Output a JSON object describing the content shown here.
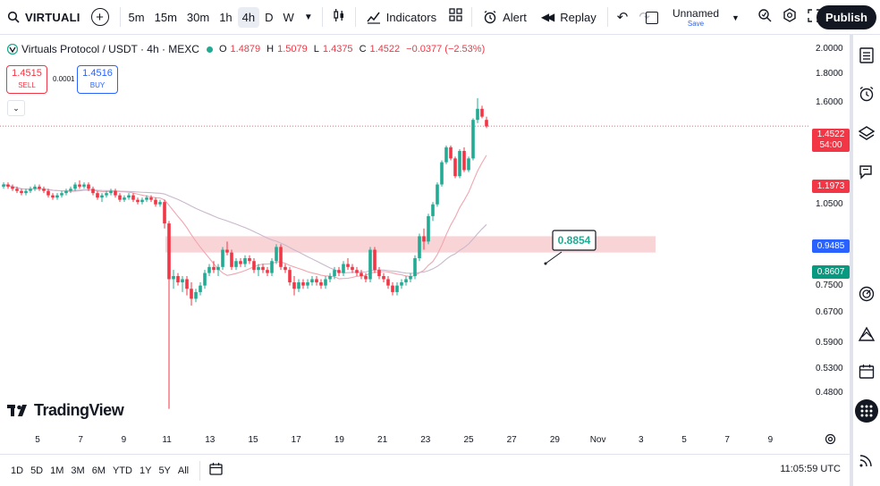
{
  "toolbar": {
    "symbol": "VIRTUALI",
    "add_symbol": "+",
    "timeframes": [
      "5m",
      "15m",
      "30m",
      "1h",
      "4h",
      "D",
      "W"
    ],
    "active_timeframe": "4h",
    "indicators_label": "Indicators",
    "alert_label": "Alert",
    "replay_label": "Replay",
    "layout_name": "Unnamed",
    "layout_save": "Save",
    "publish_label": "Publish"
  },
  "legend": {
    "title": "Virtuals Protocol / USDT · 4h · MEXC",
    "open_k": "O",
    "open_v": "1.4879",
    "high_k": "H",
    "high_v": "1.5079",
    "low_k": "L",
    "low_v": "1.4375",
    "close_k": "C",
    "close_v": "1.4522",
    "change": "−0.0377 (−2.53%)"
  },
  "trade": {
    "sell_price": "1.4515",
    "sell_label": "SELL",
    "buy_price": "1.4516",
    "buy_label": "BUY",
    "spread": "0.0001"
  },
  "price_axis": {
    "ticks": [
      "2.0000",
      "1.8000",
      "1.6000",
      "1.0500",
      "0.7500",
      "0.6700",
      "0.5900",
      "0.5300",
      "0.4800"
    ],
    "current_price": "1.4522",
    "countdown": "54:00",
    "label_red": "1.1973",
    "label_blue": "0.9485",
    "label_green": "0.8607"
  },
  "annotation": {
    "value": "0.8854"
  },
  "time_axis": {
    "ticks": [
      "5",
      "7",
      "9",
      "11",
      "13",
      "15",
      "17",
      "19",
      "21",
      "23",
      "25",
      "27",
      "29",
      "Nov",
      "3",
      "5",
      "7",
      "9"
    ]
  },
  "bottom": {
    "ranges": [
      "1D",
      "5D",
      "1M",
      "3M",
      "6M",
      "YTD",
      "1Y",
      "5Y",
      "All"
    ],
    "clock": "11:05:59 UTC"
  },
  "branding": {
    "logo_text": "TradingView"
  },
  "colors": {
    "up": "#22ab94",
    "down": "#f23645",
    "blue": "#2962ff",
    "green_label": "#089981",
    "zone": "#f8c9cd",
    "ma1": "#f0a6b0",
    "ma2": "#c9b8cc"
  },
  "chart_data": {
    "type": "candlestick",
    "symbol": "Virtuals Protocol / USDT",
    "interval": "4h",
    "exchange": "MEXC",
    "y_scale": "log",
    "support_zone": [
      0.86,
      0.92
    ],
    "candles": [
      [
        1.13,
        1.15,
        1.12,
        1.14
      ],
      [
        1.14,
        1.15,
        1.12,
        1.13
      ],
      [
        1.13,
        1.14,
        1.11,
        1.12
      ],
      [
        1.12,
        1.13,
        1.1,
        1.11
      ],
      [
        1.11,
        1.12,
        1.09,
        1.1
      ],
      [
        1.1,
        1.12,
        1.09,
        1.11
      ],
      [
        1.11,
        1.13,
        1.1,
        1.12
      ],
      [
        1.12,
        1.14,
        1.11,
        1.13
      ],
      [
        1.13,
        1.14,
        1.11,
        1.12
      ],
      [
        1.12,
        1.13,
        1.1,
        1.11
      ],
      [
        1.11,
        1.12,
        1.08,
        1.09
      ],
      [
        1.09,
        1.1,
        1.07,
        1.08
      ],
      [
        1.08,
        1.1,
        1.07,
        1.09
      ],
      [
        1.09,
        1.11,
        1.08,
        1.1
      ],
      [
        1.1,
        1.12,
        1.09,
        1.11
      ],
      [
        1.11,
        1.13,
        1.1,
        1.12
      ],
      [
        1.12,
        1.15,
        1.11,
        1.14
      ],
      [
        1.14,
        1.16,
        1.12,
        1.13
      ],
      [
        1.13,
        1.15,
        1.12,
        1.14
      ],
      [
        1.14,
        1.15,
        1.11,
        1.12
      ],
      [
        1.12,
        1.13,
        1.09,
        1.1
      ],
      [
        1.1,
        1.11,
        1.07,
        1.08
      ],
      [
        1.08,
        1.1,
        1.06,
        1.09
      ],
      [
        1.09,
        1.11,
        1.08,
        1.1
      ],
      [
        1.1,
        1.12,
        1.09,
        1.11
      ],
      [
        1.11,
        1.12,
        1.08,
        1.09
      ],
      [
        1.09,
        1.1,
        1.06,
        1.07
      ],
      [
        1.07,
        1.09,
        1.06,
        1.08
      ],
      [
        1.08,
        1.1,
        1.07,
        1.09
      ],
      [
        1.09,
        1.1,
        1.06,
        1.07
      ],
      [
        1.07,
        1.08,
        1.05,
        1.06
      ],
      [
        1.06,
        1.08,
        1.05,
        1.07
      ],
      [
        1.07,
        1.09,
        1.06,
        1.08
      ],
      [
        1.08,
        1.09,
        1.06,
        1.07
      ],
      [
        1.07,
        1.08,
        1.04,
        1.05
      ],
      [
        1.05,
        1.07,
        1.04,
        1.06
      ],
      [
        1.06,
        1.07,
        0.95,
        0.97
      ],
      [
        0.97,
        0.98,
        0.45,
        0.77
      ],
      [
        0.77,
        0.8,
        0.74,
        0.78
      ],
      [
        0.78,
        0.79,
        0.75,
        0.76
      ],
      [
        0.76,
        0.78,
        0.73,
        0.77
      ],
      [
        0.77,
        0.78,
        0.72,
        0.74
      ],
      [
        0.74,
        0.76,
        0.69,
        0.71
      ],
      [
        0.71,
        0.74,
        0.7,
        0.73
      ],
      [
        0.73,
        0.76,
        0.72,
        0.75
      ],
      [
        0.75,
        0.8,
        0.74,
        0.79
      ],
      [
        0.79,
        0.82,
        0.78,
        0.81
      ],
      [
        0.81,
        0.83,
        0.79,
        0.8
      ],
      [
        0.8,
        0.82,
        0.78,
        0.81
      ],
      [
        0.81,
        0.88,
        0.8,
        0.87
      ],
      [
        0.87,
        0.9,
        0.85,
        0.86
      ],
      [
        0.86,
        0.87,
        0.8,
        0.81
      ],
      [
        0.81,
        0.84,
        0.8,
        0.83
      ],
      [
        0.83,
        0.84,
        0.81,
        0.82
      ],
      [
        0.82,
        0.85,
        0.81,
        0.84
      ],
      [
        0.84,
        0.85,
        0.82,
        0.83
      ],
      [
        0.83,
        0.84,
        0.79,
        0.8
      ],
      [
        0.8,
        0.82,
        0.78,
        0.81
      ],
      [
        0.81,
        0.82,
        0.79,
        0.8
      ],
      [
        0.8,
        0.81,
        0.78,
        0.79
      ],
      [
        0.79,
        0.84,
        0.78,
        0.83
      ],
      [
        0.83,
        0.89,
        0.82,
        0.88
      ],
      [
        0.88,
        0.89,
        0.8,
        0.81
      ],
      [
        0.81,
        0.82,
        0.79,
        0.8
      ],
      [
        0.8,
        0.81,
        0.75,
        0.76
      ],
      [
        0.76,
        0.78,
        0.72,
        0.74
      ],
      [
        0.74,
        0.77,
        0.73,
        0.76
      ],
      [
        0.76,
        0.77,
        0.74,
        0.75
      ],
      [
        0.75,
        0.77,
        0.74,
        0.76
      ],
      [
        0.76,
        0.78,
        0.75,
        0.77
      ],
      [
        0.77,
        0.78,
        0.75,
        0.76
      ],
      [
        0.76,
        0.77,
        0.74,
        0.75
      ],
      [
        0.75,
        0.78,
        0.74,
        0.77
      ],
      [
        0.77,
        0.79,
        0.76,
        0.78
      ],
      [
        0.78,
        0.81,
        0.77,
        0.8
      ],
      [
        0.8,
        0.81,
        0.78,
        0.79
      ],
      [
        0.79,
        0.83,
        0.78,
        0.82
      ],
      [
        0.82,
        0.84,
        0.8,
        0.81
      ],
      [
        0.81,
        0.82,
        0.79,
        0.8
      ],
      [
        0.8,
        0.81,
        0.78,
        0.79
      ],
      [
        0.79,
        0.8,
        0.77,
        0.78
      ],
      [
        0.78,
        0.79,
        0.76,
        0.77
      ],
      [
        0.77,
        0.88,
        0.76,
        0.87
      ],
      [
        0.87,
        0.88,
        0.79,
        0.8
      ],
      [
        0.8,
        0.81,
        0.77,
        0.78
      ],
      [
        0.78,
        0.79,
        0.76,
        0.77
      ],
      [
        0.77,
        0.78,
        0.74,
        0.75
      ],
      [
        0.75,
        0.76,
        0.72,
        0.73
      ],
      [
        0.73,
        0.76,
        0.72,
        0.75
      ],
      [
        0.75,
        0.77,
        0.74,
        0.76
      ],
      [
        0.76,
        0.78,
        0.75,
        0.77
      ],
      [
        0.77,
        0.79,
        0.76,
        0.78
      ],
      [
        0.78,
        0.85,
        0.77,
        0.84
      ],
      [
        0.84,
        0.93,
        0.83,
        0.92
      ],
      [
        0.92,
        0.95,
        0.87,
        0.9
      ],
      [
        0.9,
        1.01,
        0.89,
        1.0
      ],
      [
        1.0,
        1.06,
        0.98,
        1.05
      ],
      [
        1.05,
        1.15,
        1.04,
        1.14
      ],
      [
        1.14,
        1.26,
        1.13,
        1.25
      ],
      [
        1.25,
        1.34,
        1.24,
        1.33
      ],
      [
        1.33,
        1.34,
        1.26,
        1.27
      ],
      [
        1.27,
        1.28,
        1.17,
        1.18
      ],
      [
        1.18,
        1.32,
        1.17,
        1.31
      ],
      [
        1.31,
        1.33,
        1.2,
        1.21
      ],
      [
        1.21,
        1.28,
        1.2,
        1.27
      ],
      [
        1.27,
        1.5,
        1.26,
        1.49
      ],
      [
        1.49,
        1.63,
        1.47,
        1.56
      ],
      [
        1.56,
        1.58,
        1.5,
        1.51
      ],
      [
        1.49,
        1.51,
        1.44,
        1.45
      ]
    ]
  }
}
